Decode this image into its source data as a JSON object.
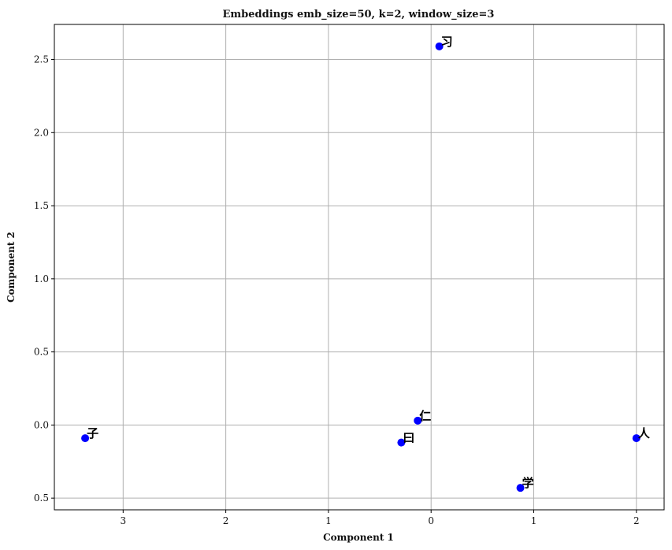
{
  "chart_data": {
    "type": "scatter",
    "title": "Embeddings emb_size=50, k=2, window_size=3",
    "xlabel": "Component 1",
    "ylabel": "Component 2",
    "xlim": [
      -3.67,
      2.27
    ],
    "ylim": [
      -0.58,
      2.74
    ],
    "grid": true,
    "point_color": "#0000ff",
    "x_ticks": [
      {
        "value": -3,
        "label": "3"
      },
      {
        "value": -2,
        "label": "2"
      },
      {
        "value": -1,
        "label": "1"
      },
      {
        "value": 0,
        "label": "0"
      },
      {
        "value": 1,
        "label": "1"
      },
      {
        "value": 2,
        "label": "2"
      }
    ],
    "y_ticks": [
      {
        "value": -0.5,
        "label": "0.5"
      },
      {
        "value": 0.0,
        "label": "0.0"
      },
      {
        "value": 0.5,
        "label": "0.5"
      },
      {
        "value": 1.0,
        "label": "1.0"
      },
      {
        "value": 1.5,
        "label": "1.5"
      },
      {
        "value": 2.0,
        "label": "2.0"
      },
      {
        "value": 2.5,
        "label": "2.5"
      }
    ],
    "points": [
      {
        "label": "习",
        "x": 0.08,
        "y": 2.59
      },
      {
        "label": "子",
        "x": -3.37,
        "y": -0.09
      },
      {
        "label": "仁",
        "x": -0.13,
        "y": 0.03
      },
      {
        "label": "曰",
        "x": -0.29,
        "y": -0.12
      },
      {
        "label": "人",
        "x": 2.0,
        "y": -0.09
      },
      {
        "label": "学",
        "x": 0.87,
        "y": -0.43
      }
    ]
  }
}
